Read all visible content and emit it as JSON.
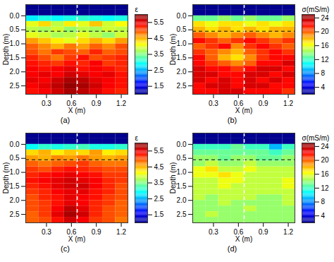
{
  "chart_data": [
    {
      "type": "heatmap",
      "caption": "(a)",
      "xlabel": "X (m)",
      "ylabel": "Depth (m)",
      "xlim": [
        0.05,
        1.28
      ],
      "ylim": [
        -0.4,
        2.8
      ],
      "xticks": [
        0.3,
        0.6,
        0.9,
        1.2
      ],
      "yticks": [
        {
          "value": 0,
          "label": "0.0"
        },
        0.5,
        {
          "value": 1,
          "label": "1.0"
        },
        1.5,
        {
          "value": 2,
          "label": "2.0"
        },
        2.5
      ],
      "hline": 0.55,
      "vline": 0.67,
      "colorbar": {
        "label": "ε",
        "range": [
          1,
          6
        ],
        "ticks": [
          1.5,
          2.5,
          3.5,
          4.5,
          5.5
        ]
      },
      "x": [
        0.13,
        0.28,
        0.44,
        0.59,
        0.74,
        0.9,
        1.05,
        1.21
      ],
      "depth": [
        -0.3,
        -0.1,
        0.1,
        0.3,
        0.5,
        0.7,
        0.9,
        1.1,
        1.3,
        1.5,
        1.7,
        1.9,
        2.1,
        2.3,
        2.5,
        2.7
      ],
      "values": [
        [
          1,
          1,
          1,
          1,
          1,
          1,
          1,
          1
        ],
        [
          1,
          1,
          1,
          1,
          1,
          1,
          1,
          1
        ],
        [
          2.8,
          3.0,
          2.9,
          3.0,
          3.1,
          3.0,
          2.9,
          3.0
        ],
        [
          4.0,
          4.3,
          3.8,
          4.2,
          4.0,
          4.4,
          3.9,
          4.1
        ],
        [
          3.8,
          3.7,
          3.9,
          3.6,
          3.8,
          3.7,
          3.9,
          3.8
        ],
        [
          4.0,
          3.9,
          3.7,
          3.8,
          4.0,
          3.8,
          3.6,
          3.9
        ],
        [
          4.6,
          4.4,
          4.2,
          4.0,
          4.3,
          4.5,
          4.3,
          4.6
        ],
        [
          4.9,
          4.7,
          4.5,
          4.8,
          4.6,
          4.9,
          4.7,
          5.0
        ],
        [
          5.0,
          4.8,
          5.1,
          5.0,
          4.9,
          5.2,
          4.9,
          5.0
        ],
        [
          5.2,
          5.0,
          4.8,
          5.1,
          5.3,
          5.0,
          5.1,
          5.2
        ],
        [
          5.3,
          5.2,
          5.1,
          5.3,
          5.2,
          5.4,
          5.1,
          5.2
        ],
        [
          5.4,
          5.3,
          5.4,
          5.5,
          5.3,
          5.4,
          5.3,
          5.2
        ],
        [
          5.4,
          5.5,
          5.4,
          5.6,
          5.5,
          5.4,
          5.5,
          5.3
        ],
        [
          5.5,
          5.4,
          5.6,
          5.8,
          5.7,
          5.5,
          5.4,
          5.3
        ],
        [
          5.4,
          5.5,
          5.7,
          5.9,
          5.8,
          5.6,
          5.4,
          5.3
        ],
        [
          5.3,
          5.4,
          5.6,
          5.8,
          5.7,
          5.5,
          5.3,
          5.2
        ]
      ]
    },
    {
      "type": "heatmap",
      "caption": "(b)",
      "xlabel": "X (m)",
      "ylabel": "Depth (m)",
      "xlim": [
        0.05,
        1.28
      ],
      "ylim": [
        -0.4,
        2.8
      ],
      "xticks": [
        0.3,
        0.6,
        0.9,
        1.2
      ],
      "yticks": [
        {
          "value": 0,
          "label": "0.0"
        },
        0.5,
        {
          "value": 1,
          "label": "1.0"
        },
        1.5,
        {
          "value": 2,
          "label": "2.0"
        },
        2.5
      ],
      "hline": 0.55,
      "vline": 0.67,
      "colorbar": {
        "label": "σ(mS/m)",
        "range": [
          2,
          25
        ],
        "ticks": [
          4,
          8,
          12,
          16,
          20,
          24
        ]
      },
      "x": [
        0.13,
        0.28,
        0.44,
        0.59,
        0.74,
        0.9,
        1.05,
        1.21
      ],
      "depth": [
        -0.3,
        -0.1,
        0.1,
        0.3,
        0.5,
        0.7,
        0.9,
        1.1,
        1.3,
        1.5,
        1.7,
        1.9,
        2.1,
        2.3,
        2.5,
        2.7
      ],
      "values": [
        [
          2,
          2,
          2,
          2,
          2,
          2,
          2,
          2
        ],
        [
          2,
          2,
          2,
          2,
          2,
          2,
          2,
          2
        ],
        [
          13,
          13,
          14,
          13,
          14,
          13,
          13,
          14
        ],
        [
          17,
          16,
          17,
          17,
          16,
          17,
          16,
          17
        ],
        [
          18,
          17,
          18,
          17,
          18,
          17,
          18,
          18
        ],
        [
          20,
          19,
          18,
          19,
          20,
          19,
          18,
          19
        ],
        [
          22,
          21,
          20,
          21,
          22,
          21,
          20,
          21
        ],
        [
          20,
          21,
          22,
          19,
          21,
          22,
          21,
          20
        ],
        [
          21,
          20,
          19,
          18,
          20,
          21,
          22,
          21
        ],
        [
          22,
          20,
          18,
          17,
          19,
          21,
          22,
          22
        ],
        [
          22,
          21,
          20,
          19,
          20,
          22,
          22,
          23
        ],
        [
          23,
          22,
          22,
          21,
          22,
          23,
          23,
          22
        ],
        [
          23,
          23,
          22,
          22,
          23,
          23,
          22,
          23
        ],
        [
          23,
          22,
          23,
          22,
          23,
          22,
          23,
          22
        ],
        [
          22,
          23,
          23,
          22,
          23,
          23,
          22,
          22
        ],
        [
          22,
          22,
          23,
          23,
          22,
          22,
          22,
          21
        ]
      ]
    },
    {
      "type": "heatmap",
      "caption": "(c)",
      "xlabel": "X (m)",
      "ylabel": "Depth (m)",
      "xlim": [
        0.05,
        1.28
      ],
      "ylim": [
        -0.4,
        2.8
      ],
      "xticks": [
        0.3,
        0.6,
        0.9,
        1.2
      ],
      "yticks": [
        {
          "value": 0,
          "label": "0.0"
        },
        0.5,
        {
          "value": 1,
          "label": "1.0"
        },
        1.5,
        {
          "value": 2,
          "label": "2.0"
        },
        2.5
      ],
      "hline": 0.55,
      "vline": 0.67,
      "colorbar": {
        "label": "ε",
        "range": [
          1,
          6
        ],
        "ticks": [
          1.5,
          2.5,
          3.5,
          4.5,
          5.5
        ]
      },
      "x": [
        0.13,
        0.28,
        0.44,
        0.59,
        0.74,
        0.9,
        1.05,
        1.21
      ],
      "depth": [
        -0.3,
        -0.1,
        0.1,
        0.3,
        0.5,
        0.7,
        0.9,
        1.1,
        1.3,
        1.5,
        1.7,
        1.9,
        2.1,
        2.3,
        2.5,
        2.7
      ],
      "values": [
        [
          1,
          1,
          1,
          1,
          1,
          1,
          1,
          1
        ],
        [
          1,
          1,
          1,
          1,
          1,
          1,
          1,
          1
        ],
        [
          2.9,
          3.1,
          3.0,
          3.1,
          3.2,
          3.0,
          3.0,
          3.1
        ],
        [
          4.3,
          4.5,
          4.2,
          4.4,
          4.3,
          4.6,
          4.2,
          4.3
        ],
        [
          4.6,
          4.5,
          4.7,
          4.6,
          4.8,
          4.6,
          4.5,
          4.6
        ],
        [
          4.9,
          4.8,
          4.9,
          5.0,
          5.1,
          4.9,
          4.8,
          4.8
        ],
        [
          5.1,
          5.0,
          5.2,
          5.3,
          5.2,
          5.1,
          5.0,
          5.0
        ],
        [
          5.2,
          5.3,
          5.4,
          5.5,
          5.4,
          5.3,
          5.1,
          5.1
        ],
        [
          5.3,
          5.4,
          5.5,
          5.6,
          5.5,
          5.4,
          5.2,
          5.1
        ],
        [
          5.2,
          5.3,
          5.5,
          5.6,
          5.6,
          5.4,
          5.2,
          5.0
        ],
        [
          5.1,
          5.2,
          5.4,
          5.5,
          5.5,
          5.3,
          5.2,
          5.0
        ],
        [
          5.0,
          5.2,
          5.3,
          5.5,
          5.4,
          5.3,
          5.1,
          5.0
        ],
        [
          5.0,
          5.1,
          5.3,
          5.5,
          5.4,
          5.2,
          5.1,
          4.9
        ],
        [
          5.0,
          5.1,
          5.4,
          5.7,
          5.5,
          5.2,
          5.0,
          4.9
        ],
        [
          4.9,
          5.1,
          5.5,
          5.8,
          5.6,
          5.2,
          5.0,
          4.9
        ],
        [
          4.9,
          5.0,
          5.3,
          5.6,
          5.4,
          5.1,
          5.0,
          4.8
        ]
      ]
    },
    {
      "type": "heatmap",
      "caption": "(d)",
      "xlabel": "X (m)",
      "ylabel": "Depth (m)",
      "xlim": [
        0.05,
        1.28
      ],
      "ylim": [
        -0.4,
        2.8
      ],
      "xticks": [
        0.3,
        0.6,
        0.9,
        1.2
      ],
      "yticks": [
        {
          "value": 0,
          "label": "0.0"
        },
        0.5,
        {
          "value": 1,
          "label": "1.0"
        },
        1.5,
        {
          "value": 2,
          "label": "2.0"
        },
        2.5
      ],
      "hline": 0.55,
      "vline": 0.67,
      "colorbar": {
        "label": "σ(mS/m)",
        "range": [
          2,
          25
        ],
        "ticks": [
          4,
          8,
          12,
          16,
          20,
          24
        ]
      },
      "x": [
        0.13,
        0.28,
        0.44,
        0.59,
        0.74,
        0.9,
        1.05,
        1.21
      ],
      "depth": [
        -0.3,
        -0.1,
        0.1,
        0.3,
        0.5,
        0.7,
        0.9,
        1.1,
        1.3,
        1.5,
        1.7,
        1.9,
        2.1,
        2.3,
        2.5,
        2.7
      ],
      "values": [
        [
          2,
          2,
          2,
          2,
          2,
          2,
          2,
          2
        ],
        [
          2,
          2,
          2,
          2,
          2,
          2,
          2,
          2
        ],
        [
          12,
          12,
          12,
          13,
          12,
          12,
          9,
          12
        ],
        [
          13,
          13,
          13,
          13,
          13,
          13,
          12,
          13
        ],
        [
          14,
          14,
          13,
          14,
          14,
          13,
          13,
          14
        ],
        [
          14,
          15,
          14,
          14,
          15,
          14,
          14,
          14
        ],
        [
          16,
          17,
          15,
          15,
          16,
          15,
          15,
          15
        ],
        [
          16,
          16,
          17,
          16,
          15,
          15,
          15,
          15
        ],
        [
          15,
          15,
          16,
          16,
          15,
          15,
          15,
          16
        ],
        [
          15,
          15,
          16,
          15,
          15,
          15,
          15,
          16
        ],
        [
          15,
          15,
          15,
          15,
          15,
          15,
          15,
          15
        ],
        [
          15,
          14,
          15,
          15,
          15,
          14,
          14,
          15
        ],
        [
          14,
          14,
          15,
          14,
          14,
          14,
          14,
          15
        ],
        [
          14,
          14,
          14,
          14,
          15,
          14,
          14,
          14
        ],
        [
          14,
          15,
          14,
          14,
          14,
          14,
          14,
          14
        ],
        [
          14,
          14,
          14,
          14,
          14,
          14,
          14,
          14
        ]
      ]
    }
  ]
}
